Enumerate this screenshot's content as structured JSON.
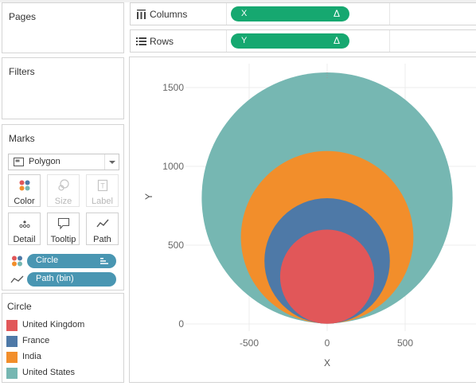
{
  "pages": {
    "title": "Pages"
  },
  "filters": {
    "title": "Filters"
  },
  "marks": {
    "title": "Marks",
    "mark_type": "Polygon",
    "buttons": [
      {
        "label": "Color",
        "icon": "color-dots-icon",
        "enabled": true
      },
      {
        "label": "Size",
        "icon": "size-icon",
        "enabled": false
      },
      {
        "label": "Label",
        "icon": "label-icon",
        "enabled": false
      },
      {
        "label": "Detail",
        "icon": "detail-dots-icon",
        "enabled": true
      },
      {
        "label": "Tooltip",
        "icon": "tooltip-icon",
        "enabled": true
      },
      {
        "label": "Path",
        "icon": "path-icon",
        "enabled": true
      }
    ],
    "fields": [
      {
        "label": "Circle",
        "icon": "color-dots-icon",
        "sorted": true
      },
      {
        "label": "Path (bin)",
        "icon": "path-icon",
        "sorted": false
      }
    ]
  },
  "legend": {
    "title": "Circle",
    "items": [
      {
        "label": "United Kingdom",
        "color": "#e15759"
      },
      {
        "label": "France",
        "color": "#4e79a7"
      },
      {
        "label": "India",
        "color": "#f28e2b"
      },
      {
        "label": "United States",
        "color": "#76b7b2"
      }
    ]
  },
  "shelves": {
    "columns": {
      "label": "Columns",
      "pill": "X",
      "pill_icon": "delta-icon"
    },
    "rows": {
      "label": "Rows",
      "pill": "Y",
      "pill_icon": "delta-icon"
    }
  },
  "chart_data": {
    "type": "area",
    "shape": "nested circles tangent at bottom",
    "xlabel": "X",
    "ylabel": "Y",
    "xlim": [
      -1000,
      1000
    ],
    "ylim": [
      -10,
      1620
    ],
    "x_ticks": [
      -500,
      0,
      500
    ],
    "y_ticks": [
      0,
      500,
      1000,
      1500
    ],
    "grid": true,
    "series": [
      {
        "name": "United States",
        "color": "#76b7b2",
        "center": [
          0,
          800
        ],
        "radius": 800
      },
      {
        "name": "India",
        "color": "#f28e2b",
        "center": [
          0,
          550
        ],
        "radius": 550
      },
      {
        "name": "France",
        "color": "#4e79a7",
        "center": [
          0,
          400
        ],
        "radius": 400
      },
      {
        "name": "United Kingdom",
        "color": "#e15759",
        "center": [
          0,
          300
        ],
        "radius": 300
      }
    ]
  }
}
